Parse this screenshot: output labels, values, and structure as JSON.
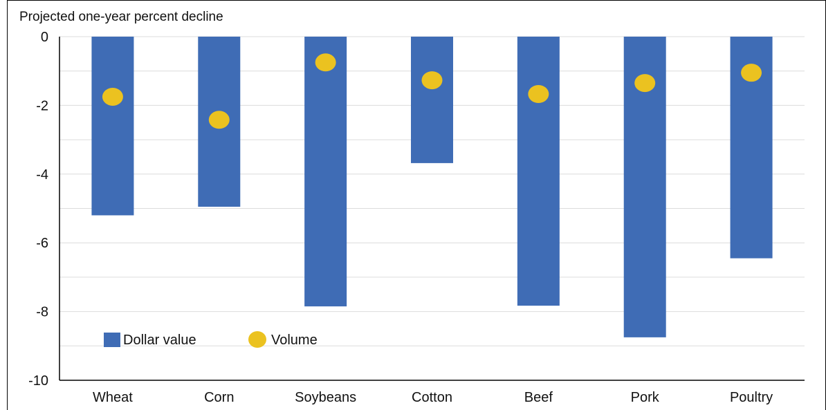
{
  "chart_data": {
    "type": "bar",
    "title": "",
    "ylabel": "Projected one-year percent decline",
    "xlabel": "",
    "categories": [
      "Wheat",
      "Corn",
      "Soybeans",
      "Cotton",
      "Beef",
      "Pork",
      "Poultry"
    ],
    "series": [
      {
        "name": "Dollar value",
        "type": "bar",
        "color": "#3F6CB5",
        "values": [
          -5.2,
          -4.95,
          -7.85,
          -3.68,
          -7.83,
          -8.75,
          -6.45
        ]
      },
      {
        "name": "Volume",
        "type": "scatter",
        "color": "#EBC220",
        "values": [
          -1.75,
          -2.42,
          -0.75,
          -1.27,
          -1.67,
          -1.35,
          -1.05
        ]
      }
    ],
    "ylim": [
      -10,
      0
    ],
    "yticks": [
      0,
      -2,
      -4,
      -6,
      -8,
      -10
    ],
    "grid": true,
    "legend_position": "bottom-left"
  }
}
